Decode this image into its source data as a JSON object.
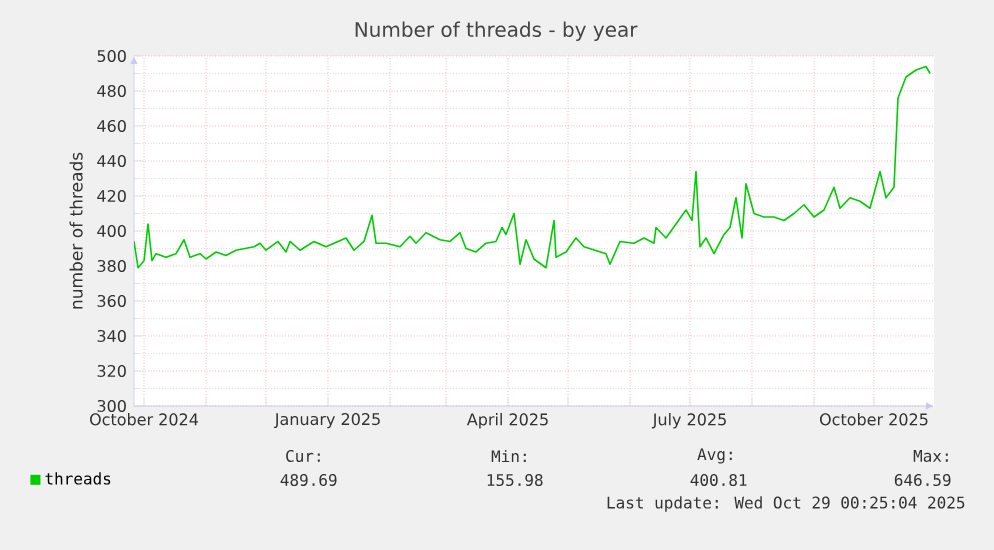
{
  "chart_data": {
    "type": "line",
    "title": "Number of threads - by year",
    "ylabel": "number of threads",
    "x": [
      "2024-09-26",
      "2024-09-28",
      "2024-10-01",
      "2024-10-03",
      "2024-10-05",
      "2024-10-07",
      "2024-10-12",
      "2024-10-17",
      "2024-10-21",
      "2024-10-24",
      "2024-10-29",
      "2024-11-01",
      "2024-11-06",
      "2024-11-11",
      "2024-11-16",
      "2024-11-25",
      "2024-11-28",
      "2024-12-01",
      "2024-12-07",
      "2024-12-11",
      "2024-12-13",
      "2024-12-18",
      "2024-12-25",
      "2024-12-31",
      "2025-01-10",
      "2025-01-14",
      "2025-01-19",
      "2025-01-23",
      "2025-01-25",
      "2025-01-30",
      "2025-02-06",
      "2025-02-11",
      "2025-02-14",
      "2025-02-19",
      "2025-02-26",
      "2025-03-03",
      "2025-03-08",
      "2025-03-11",
      "2025-03-16",
      "2025-03-21",
      "2025-03-26",
      "2025-03-29",
      "2025-03-31",
      "2025-04-04",
      "2025-04-07",
      "2025-04-10",
      "2025-04-14",
      "2025-04-20",
      "2025-04-24",
      "2025-04-25",
      "2025-04-30",
      "2025-05-05",
      "2025-05-09",
      "2025-05-20",
      "2025-05-22",
      "2025-05-27",
      "2025-06-03",
      "2025-06-08",
      "2025-06-13",
      "2025-06-14",
      "2025-06-19",
      "2025-06-24",
      "2025-06-29",
      "2025-07-02",
      "2025-07-04",
      "2025-07-06",
      "2025-07-09",
      "2025-07-13",
      "2025-07-18",
      "2025-07-21",
      "2025-07-24",
      "2025-07-27",
      "2025-07-29",
      "2025-08-02",
      "2025-08-07",
      "2025-08-12",
      "2025-08-17",
      "2025-08-22",
      "2025-08-27",
      "2025-09-01",
      "2025-09-06",
      "2025-09-11",
      "2025-09-14",
      "2025-09-19",
      "2025-09-24",
      "2025-09-29",
      "2025-10-04",
      "2025-10-07",
      "2025-10-11",
      "2025-10-13",
      "2025-10-17",
      "2025-10-22",
      "2025-10-27",
      "2025-10-29"
    ],
    "series": [
      {
        "name": "threads",
        "color": "#00cc00",
        "values": [
          394,
          379,
          383,
          404,
          383,
          387,
          385,
          387,
          395,
          385,
          387,
          384,
          388,
          386,
          389,
          391,
          393,
          389,
          394,
          388,
          394,
          389,
          394,
          391,
          396,
          389,
          394,
          409,
          393,
          393,
          391,
          397,
          393,
          399,
          395,
          394,
          399,
          390,
          388,
          393,
          394,
          402,
          398,
          410,
          381,
          395,
          384,
          379,
          406,
          385,
          388,
          396,
          391,
          387,
          381,
          394,
          393,
          396,
          393,
          402,
          396,
          404,
          412,
          406,
          434,
          391,
          396,
          387,
          398,
          402,
          419,
          396,
          427,
          410,
          408,
          408,
          406,
          410,
          415,
          408,
          412,
          425,
          413,
          419,
          417,
          413,
          434,
          419,
          425,
          476,
          488,
          492,
          494,
          490
        ]
      }
    ],
    "xlim": [
      "2024-09-26",
      "2025-10-31"
    ],
    "xticks": [
      {
        "value": "2024-10-01",
        "label": "October 2024"
      },
      {
        "value": "2024-11-01",
        "label": null
      },
      {
        "value": "2024-12-01",
        "label": null
      },
      {
        "value": "2025-01-01",
        "label": "January 2025"
      },
      {
        "value": "2025-02-01",
        "label": null
      },
      {
        "value": "2025-03-01",
        "label": null
      },
      {
        "value": "2025-04-01",
        "label": "April 2025"
      },
      {
        "value": "2025-05-01",
        "label": null
      },
      {
        "value": "2025-06-01",
        "label": null
      },
      {
        "value": "2025-07-01",
        "label": "July 2025"
      },
      {
        "value": "2025-08-01",
        "label": null
      },
      {
        "value": "2025-09-01",
        "label": null
      },
      {
        "value": "2025-10-01",
        "label": "October 2025"
      }
    ],
    "ylim": [
      300,
      500
    ],
    "yticks": [
      300,
      320,
      340,
      360,
      380,
      400,
      420,
      440,
      460,
      480,
      500
    ],
    "grid": true,
    "legend": "bottom",
    "annotations": [
      "Cur:",
      "Min:",
      "Avg:",
      "Max:",
      "489.69",
      "155.98",
      "400.81",
      "646.59",
      "Last update: Wed Oct 29 00:25:04 2025"
    ]
  }
}
